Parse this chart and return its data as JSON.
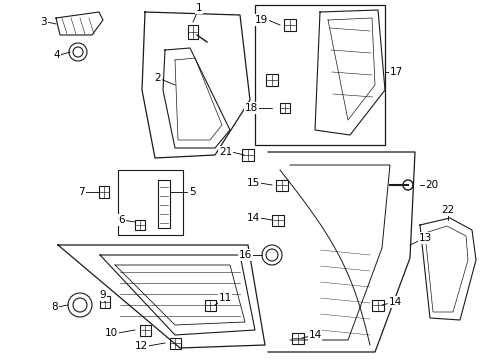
{
  "background_color": "#ffffff",
  "line_color": "#1a1a1a",
  "figure_width": 4.9,
  "figure_height": 3.6,
  "dpi": 100
}
